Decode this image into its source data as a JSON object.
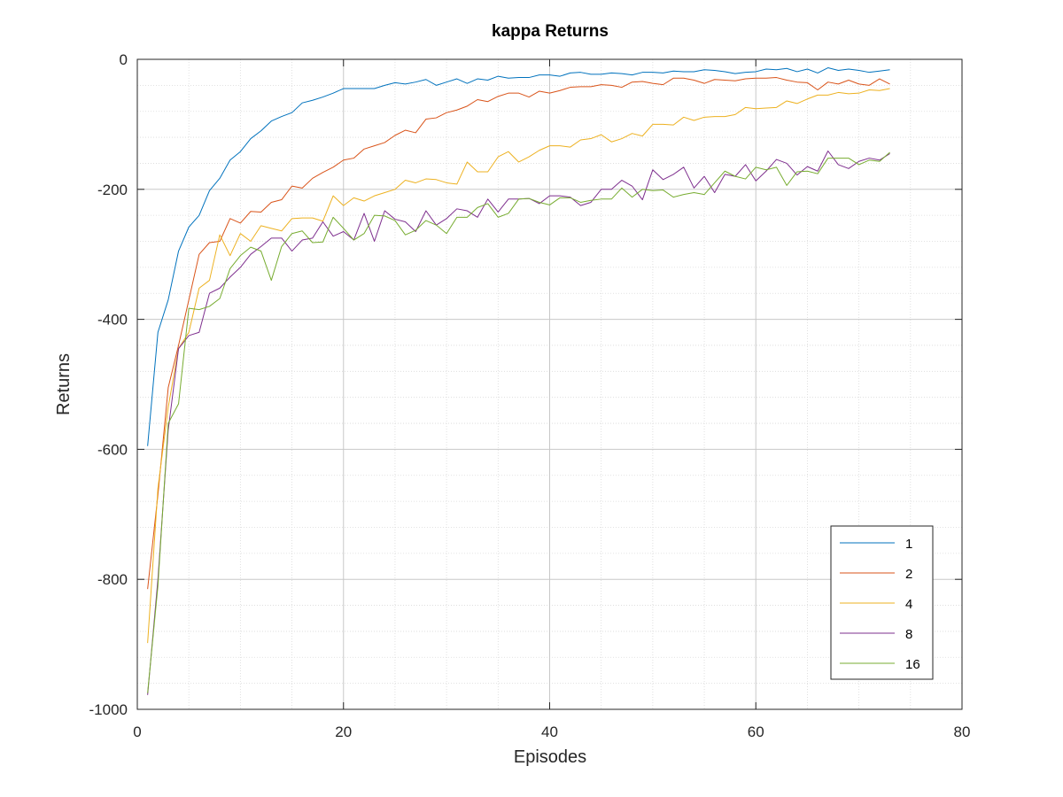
{
  "chart_data": {
    "type": "line",
    "title": "kappa Returns",
    "xlabel": "Episodes",
    "ylabel": "Returns",
    "xlim": [
      0,
      80
    ],
    "ylim": [
      -1000,
      0
    ],
    "xticks": [
      0,
      20,
      40,
      60,
      80
    ],
    "yticks": [
      0,
      -200,
      -400,
      -600,
      -800,
      -1000
    ],
    "xtick_labels": [
      "0",
      "20",
      "40",
      "60",
      "80"
    ],
    "ytick_labels": [
      "0",
      "-200",
      "-400",
      "-600",
      "-800",
      "-1000"
    ],
    "grid": true,
    "minor_grid": true,
    "legend_position": "bottom-right",
    "x": [
      1,
      2,
      3,
      4,
      5,
      6,
      7,
      8,
      9,
      10,
      11,
      12,
      13,
      14,
      15,
      16,
      17,
      18,
      19,
      20,
      21,
      22,
      23,
      24,
      25,
      26,
      27,
      28,
      29,
      30,
      31,
      32,
      33,
      34,
      35,
      36,
      37,
      38,
      39,
      40,
      41,
      42,
      43,
      44,
      45,
      46,
      47,
      48,
      49,
      50,
      51,
      52,
      53,
      54,
      55,
      56,
      57,
      58,
      59,
      60,
      61,
      62,
      63,
      64,
      65,
      66,
      67,
      68,
      69,
      70,
      71,
      72,
      73
    ],
    "series": [
      {
        "name": "1",
        "color": "#0072BD",
        "values": [
          -595,
          -420,
          -370,
          -295,
          -258,
          -240,
          -202,
          -183,
          -155,
          -142,
          -122,
          -110,
          -95,
          -88,
          -82,
          -67,
          -63,
          -58,
          -52,
          -45,
          -45,
          -45,
          -45,
          -40,
          -36,
          -38,
          -35,
          -31,
          -40,
          -35,
          -30,
          -37,
          -30,
          -32,
          -26,
          -29,
          -28,
          -28,
          -24,
          -24,
          -26,
          -21,
          -20,
          -23,
          -23,
          -21,
          -22,
          -24,
          -20,
          -20,
          -21,
          -18,
          -19,
          -19,
          -16,
          -17,
          -19,
          -22,
          -20,
          -19,
          -15,
          -16,
          -14,
          -19,
          -15,
          -21,
          -13,
          -17,
          -15,
          -17,
          -20,
          -18,
          -16
        ]
      },
      {
        "name": "2",
        "color": "#D95319",
        "values": [
          -815,
          -670,
          -505,
          -440,
          -370,
          -300,
          -282,
          -280,
          -245,
          -252,
          -234,
          -235,
          -220,
          -216,
          -195,
          -198,
          -183,
          -174,
          -166,
          -155,
          -152,
          -138,
          -133,
          -128,
          -117,
          -109,
          -113,
          -92,
          -90,
          -82,
          -78,
          -72,
          -62,
          -65,
          -57,
          -52,
          -52,
          -58,
          -49,
          -52,
          -48,
          -43,
          -42,
          -42,
          -39,
          -40,
          -43,
          -35,
          -34,
          -37,
          -39,
          -29,
          -29,
          -32,
          -37,
          -31,
          -32,
          -33,
          -30,
          -29,
          -29,
          -28,
          -32,
          -35,
          -36,
          -47,
          -35,
          -38,
          -32,
          -38,
          -40,
          -30,
          -38
        ]
      },
      {
        "name": "4",
        "color": "#EDB120",
        "values": [
          -898,
          -660,
          -535,
          -445,
          -420,
          -352,
          -340,
          -270,
          -302,
          -268,
          -280,
          -256,
          -260,
          -264,
          -245,
          -244,
          -244,
          -249,
          -210,
          -225,
          -213,
          -218,
          -210,
          -205,
          -200,
          -186,
          -190,
          -184,
          -185,
          -190,
          -192,
          -158,
          -173,
          -173,
          -150,
          -142,
          -158,
          -150,
          -140,
          -133,
          -133,
          -135,
          -124,
          -122,
          -116,
          -127,
          -122,
          -114,
          -118,
          -100,
          -100,
          -101,
          -89,
          -94,
          -89,
          -88,
          -88,
          -85,
          -74,
          -76,
          -75,
          -74,
          -64,
          -68,
          -61,
          -55,
          -55,
          -51,
          -53,
          -52,
          -47,
          -48,
          -45
        ]
      },
      {
        "name": "8",
        "color": "#7E2F8E",
        "values": [
          -978,
          -800,
          -570,
          -445,
          -425,
          -420,
          -360,
          -352,
          -335,
          -320,
          -300,
          -288,
          -275,
          -275,
          -295,
          -278,
          -275,
          -250,
          -272,
          -265,
          -278,
          -237,
          -280,
          -233,
          -246,
          -250,
          -265,
          -233,
          -255,
          -245,
          -230,
          -233,
          -243,
          -215,
          -235,
          -215,
          -215,
          -214,
          -222,
          -210,
          -210,
          -212,
          -225,
          -220,
          -200,
          -200,
          -186,
          -195,
          -216,
          -170,
          -185,
          -177,
          -166,
          -198,
          -180,
          -205,
          -177,
          -180,
          -162,
          -187,
          -172,
          -154,
          -160,
          -178,
          -165,
          -172,
          -141,
          -162,
          -168,
          -157,
          -152,
          -155,
          -145
        ]
      },
      {
        "name": "16",
        "color": "#77AC30",
        "values": [
          -975,
          -810,
          -560,
          -530,
          -383,
          -385,
          -380,
          -368,
          -322,
          -302,
          -289,
          -295,
          -340,
          -288,
          -268,
          -264,
          -282,
          -281,
          -243,
          -260,
          -278,
          -268,
          -240,
          -241,
          -248,
          -270,
          -263,
          -248,
          -255,
          -268,
          -243,
          -243,
          -228,
          -222,
          -243,
          -237,
          -215,
          -214,
          -220,
          -224,
          -213,
          -213,
          -220,
          -217,
          -215,
          -215,
          -198,
          -212,
          -200,
          -202,
          -201,
          -212,
          -208,
          -205,
          -208,
          -190,
          -172,
          -180,
          -184,
          -166,
          -170,
          -166,
          -194,
          -173,
          -172,
          -176,
          -152,
          -152,
          -152,
          -162,
          -155,
          -157,
          -143
        ]
      }
    ]
  }
}
